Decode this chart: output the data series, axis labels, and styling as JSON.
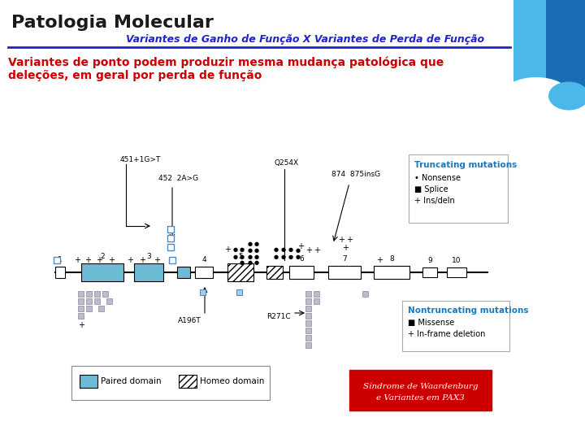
{
  "title": "Patologia Molecular",
  "subtitle": "Variantes de Ganho de Função X Variantes de Perda de Função",
  "body_text_line1": "Variantes de ponto podem produzir mesma mudança patológica que",
  "body_text_line2": "deleções, em geral por perda de função",
  "red_box_line1": "Síndrome de Waardenburg",
  "red_box_line2": "e Variantes em PAX3",
  "bg_color": "#ffffff",
  "title_color": "#1a1a1a",
  "subtitle_color": "#2222cc",
  "body_color": "#cc0000",
  "blue_light": "#5bb8d4",
  "blue_dark": "#0055a5",
  "blue_mid": "#1a7abf",
  "header_line_color": "#2222cc",
  "truncating_box_title": "Truncating mutations",
  "truncating_box_items": [
    "• Nonsense",
    "■ Splice",
    "+ Ins/deln"
  ],
  "nontruncating_box_title": "Nontruncating mutations",
  "nontruncating_box_items": [
    "■ Missense",
    "+ In-frame deletion"
  ],
  "legend_paired": "Paired domain",
  "legend_homeo": "Homeo domain"
}
